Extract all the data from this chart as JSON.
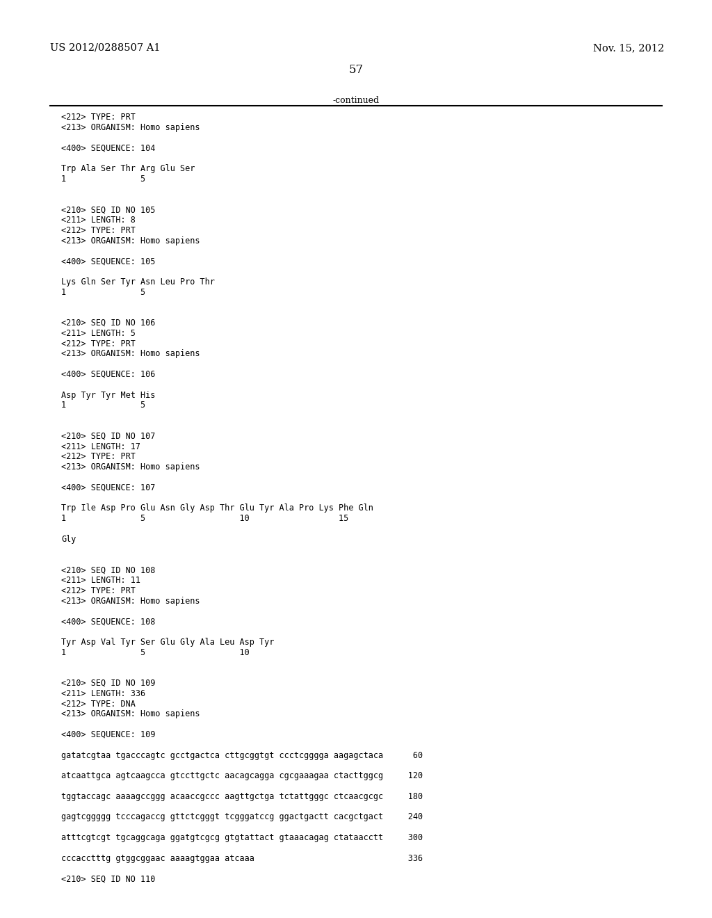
{
  "header_left": "US 2012/0288507 A1",
  "header_right": "Nov. 15, 2012",
  "page_number": "57",
  "continued_text": "-continued",
  "background_color": "#ffffff",
  "text_color": "#000000",
  "font_size_header": 10.5,
  "font_size_page": 12,
  "font_size_body": 8.5,
  "lines": [
    "<212> TYPE: PRT",
    "<213> ORGANISM: Homo sapiens",
    "",
    "<400> SEQUENCE: 104",
    "",
    "Trp Ala Ser Thr Arg Glu Ser",
    "1               5",
    "",
    "",
    "<210> SEQ ID NO 105",
    "<211> LENGTH: 8",
    "<212> TYPE: PRT",
    "<213> ORGANISM: Homo sapiens",
    "",
    "<400> SEQUENCE: 105",
    "",
    "Lys Gln Ser Tyr Asn Leu Pro Thr",
    "1               5",
    "",
    "",
    "<210> SEQ ID NO 106",
    "<211> LENGTH: 5",
    "<212> TYPE: PRT",
    "<213> ORGANISM: Homo sapiens",
    "",
    "<400> SEQUENCE: 106",
    "",
    "Asp Tyr Tyr Met His",
    "1               5",
    "",
    "",
    "<210> SEQ ID NO 107",
    "<211> LENGTH: 17",
    "<212> TYPE: PRT",
    "<213> ORGANISM: Homo sapiens",
    "",
    "<400> SEQUENCE: 107",
    "",
    "Trp Ile Asp Pro Glu Asn Gly Asp Thr Glu Tyr Ala Pro Lys Phe Gln",
    "1               5                   10                  15",
    "",
    "Gly",
    "",
    "",
    "<210> SEQ ID NO 108",
    "<211> LENGTH: 11",
    "<212> TYPE: PRT",
    "<213> ORGANISM: Homo sapiens",
    "",
    "<400> SEQUENCE: 108",
    "",
    "Tyr Asp Val Tyr Ser Glu Gly Ala Leu Asp Tyr",
    "1               5                   10",
    "",
    "",
    "<210> SEQ ID NO 109",
    "<211> LENGTH: 336",
    "<212> TYPE: DNA",
    "<213> ORGANISM: Homo sapiens",
    "",
    "<400> SEQUENCE: 109",
    "",
    "gatatcgtaa tgacccagtc gcctgactca cttgcggtgt ccctcgggga aagagctaca      60",
    "",
    "atcaattgca agtcaagcca gtccttgctc aacagcagga cgcgaaagaa ctacttggcg     120",
    "",
    "tggtaccagc aaaagccggg acaaccgccc aagttgctga tctattgggc ctcaacgcgc     180",
    "",
    "gagtcggggg tcccagaccg gttctcgggt tcgggatccg ggactgactt cacgctgact     240",
    "",
    "atttcgtcgt tgcaggcaga ggatgtcgcg gtgtattact gtaaacagag ctataacctt     300",
    "",
    "cccacctttg gtggcggaac aaaagtggaa atcaaa                               336",
    "",
    "<210> SEQ ID NO 110"
  ]
}
